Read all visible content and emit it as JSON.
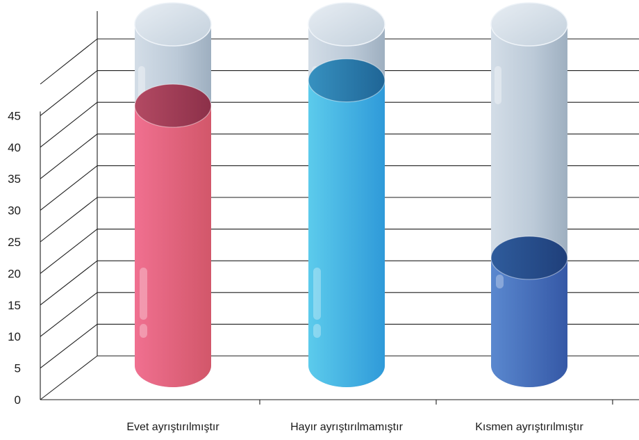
{
  "chart_data": {
    "type": "bar",
    "style": "3d-cylinder",
    "categories": [
      "Evet ayrıştırılmıştır",
      "Hayır ayrıştırılmamıştır",
      "Kısmen ayrıştırılmıştır"
    ],
    "values": [
      41,
      45,
      17
    ],
    "bar_colors": [
      "#e8607c",
      "#3fb1e2",
      "#4a76c0"
    ],
    "background_cylinder_color": "#b9c6d3",
    "yticks": [
      0,
      5,
      10,
      15,
      20,
      25,
      30,
      35,
      40,
      45
    ],
    "ylim": [
      0,
      50
    ],
    "grid": true,
    "legend": "none"
  }
}
